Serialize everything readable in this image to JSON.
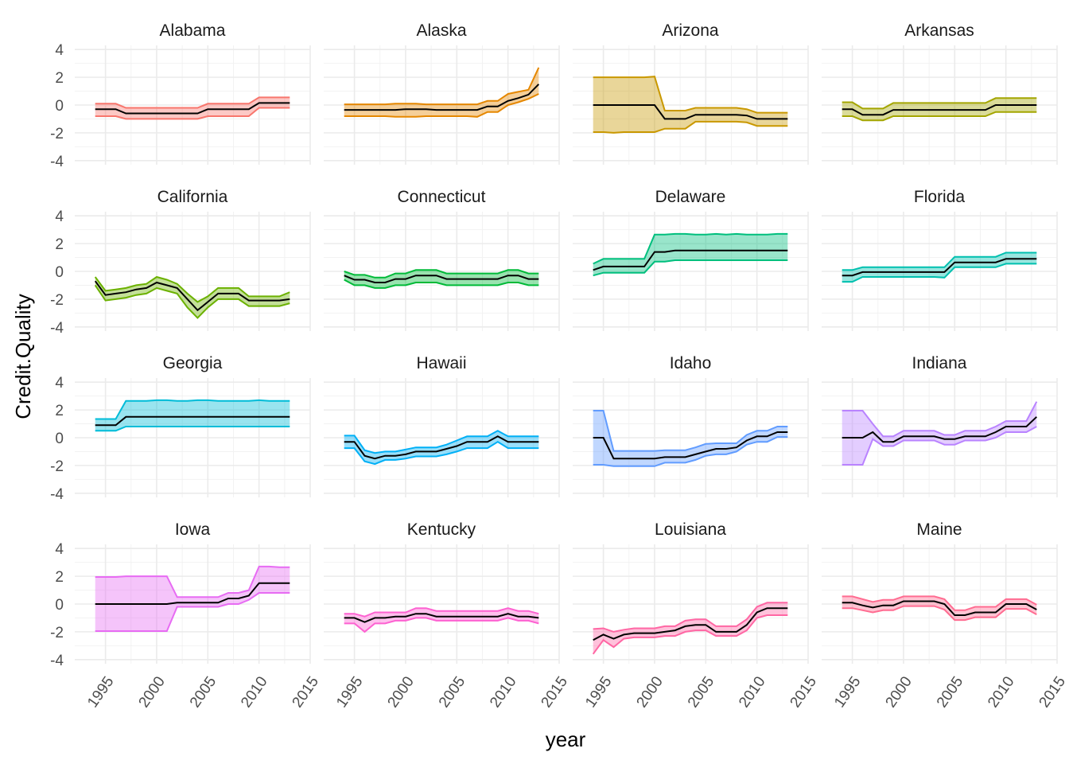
{
  "chart_data": {
    "type": "area",
    "xlabel": "year",
    "ylabel": "Credit.Quality",
    "xlim": [
      1992,
      2015
    ],
    "ylim": [
      -4.3,
      4.3
    ],
    "x_ticks": [
      1995,
      2000,
      2005,
      2010,
      2015
    ],
    "y_ticks": [
      -4,
      -2,
      0,
      2,
      4
    ],
    "facet_cols": 4,
    "colors": [
      "#F8766D",
      "#E58700",
      "#C99800",
      "#A3A500",
      "#6BB100",
      "#00BA38",
      "#00BF7D",
      "#00C0AF",
      "#00BCD8",
      "#00B0F6",
      "#619CFF",
      "#B983FF",
      "#E76BF3",
      "#FD61D1",
      "#FF67A4",
      "#FF6C91"
    ],
    "line_color": "#000000",
    "years": [
      1994,
      1995,
      1996,
      1997,
      1998,
      1999,
      2000,
      2001,
      2002,
      2003,
      2004,
      2005,
      2006,
      2007,
      2008,
      2009,
      2010,
      2011,
      2012,
      2013
    ],
    "panels": [
      {
        "state": "Alabama",
        "mean": [
          -0.3,
          -0.3,
          -0.3,
          -0.6,
          -0.6,
          -0.6,
          -0.6,
          -0.6,
          -0.6,
          -0.6,
          -0.6,
          -0.3,
          -0.3,
          -0.3,
          -0.3,
          -0.3,
          0.15,
          0.15,
          0.15,
          0.15
        ],
        "lower": [
          -0.8,
          -0.8,
          -0.8,
          -1.0,
          -1.0,
          -1.0,
          -1.0,
          -1.0,
          -1.0,
          -1.0,
          -1.0,
          -0.8,
          -0.8,
          -0.8,
          -0.8,
          -0.8,
          -0.2,
          -0.2,
          -0.2,
          -0.2
        ],
        "upper": [
          0.1,
          0.1,
          0.1,
          -0.2,
          -0.2,
          -0.2,
          -0.2,
          -0.2,
          -0.2,
          -0.2,
          -0.2,
          0.1,
          0.1,
          0.1,
          0.1,
          0.1,
          0.55,
          0.55,
          0.55,
          0.55
        ]
      },
      {
        "state": "Alaska",
        "mean": [
          -0.35,
          -0.35,
          -0.35,
          -0.35,
          -0.35,
          -0.35,
          -0.3,
          -0.3,
          -0.3,
          -0.35,
          -0.35,
          -0.35,
          -0.35,
          -0.35,
          -0.1,
          -0.1,
          0.3,
          0.5,
          0.75,
          1.5
        ],
        "lower": [
          -0.8,
          -0.8,
          -0.8,
          -0.8,
          -0.8,
          -0.85,
          -0.85,
          -0.85,
          -0.8,
          -0.8,
          -0.8,
          -0.8,
          -0.8,
          -0.85,
          -0.5,
          -0.5,
          0.0,
          0.2,
          0.45,
          0.8
        ],
        "upper": [
          0.05,
          0.05,
          0.05,
          0.05,
          0.05,
          0.1,
          0.1,
          0.1,
          0.05,
          0.05,
          0.05,
          0.05,
          0.05,
          0.05,
          0.3,
          0.3,
          0.8,
          0.95,
          1.1,
          2.7
        ]
      },
      {
        "state": "Arizona",
        "mean": [
          0.0,
          0.0,
          0.0,
          0.0,
          0.0,
          0.0,
          0.0,
          -1.0,
          -1.0,
          -1.0,
          -0.7,
          -0.7,
          -0.7,
          -0.7,
          -0.7,
          -0.75,
          -1.0,
          -1.0,
          -1.0,
          -1.0
        ],
        "lower": [
          -1.95,
          -1.95,
          -2.0,
          -1.95,
          -1.95,
          -1.95,
          -1.95,
          -1.7,
          -1.7,
          -1.7,
          -1.2,
          -1.2,
          -1.2,
          -1.2,
          -1.2,
          -1.25,
          -1.5,
          -1.5,
          -1.5,
          -1.5
        ],
        "upper": [
          2.0,
          2.0,
          2.0,
          2.0,
          2.0,
          2.0,
          2.05,
          -0.4,
          -0.4,
          -0.4,
          -0.2,
          -0.2,
          -0.2,
          -0.2,
          -0.2,
          -0.3,
          -0.55,
          -0.55,
          -0.55,
          -0.55
        ]
      },
      {
        "state": "Arkansas",
        "mean": [
          -0.3,
          -0.3,
          -0.7,
          -0.7,
          -0.7,
          -0.35,
          -0.35,
          -0.35,
          -0.35,
          -0.35,
          -0.35,
          -0.35,
          -0.35,
          -0.35,
          -0.35,
          0.0,
          0.0,
          0.0,
          0.0,
          0.0
        ],
        "lower": [
          -0.8,
          -0.8,
          -1.1,
          -1.1,
          -1.1,
          -0.8,
          -0.8,
          -0.8,
          -0.8,
          -0.8,
          -0.8,
          -0.8,
          -0.8,
          -0.8,
          -0.8,
          -0.5,
          -0.5,
          -0.5,
          -0.5,
          -0.5
        ],
        "upper": [
          0.2,
          0.2,
          -0.25,
          -0.25,
          -0.25,
          0.15,
          0.15,
          0.15,
          0.15,
          0.15,
          0.15,
          0.15,
          0.15,
          0.15,
          0.15,
          0.5,
          0.5,
          0.5,
          0.5,
          0.5
        ]
      },
      {
        "state": "California",
        "mean": [
          -0.7,
          -1.7,
          -1.6,
          -1.5,
          -1.3,
          -1.2,
          -0.8,
          -1.0,
          -1.2,
          -2.0,
          -2.8,
          -2.2,
          -1.6,
          -1.6,
          -1.6,
          -2.1,
          -2.1,
          -2.1,
          -2.1,
          -2.0
        ],
        "lower": [
          -1.0,
          -2.1,
          -2.0,
          -1.9,
          -1.7,
          -1.6,
          -1.2,
          -1.4,
          -1.6,
          -2.6,
          -3.35,
          -2.6,
          -2.0,
          -2.0,
          -2.0,
          -2.5,
          -2.5,
          -2.5,
          -2.5,
          -2.3
        ],
        "upper": [
          -0.4,
          -1.4,
          -1.3,
          -1.2,
          -1.0,
          -0.9,
          -0.4,
          -0.6,
          -0.9,
          -1.6,
          -2.2,
          -1.8,
          -1.2,
          -1.2,
          -1.2,
          -1.8,
          -1.8,
          -1.8,
          -1.8,
          -1.5
        ]
      },
      {
        "state": "Connecticut",
        "mean": [
          -0.3,
          -0.6,
          -0.6,
          -0.8,
          -0.8,
          -0.55,
          -0.55,
          -0.3,
          -0.3,
          -0.3,
          -0.55,
          -0.55,
          -0.55,
          -0.55,
          -0.55,
          -0.55,
          -0.3,
          -0.3,
          -0.55,
          -0.55
        ],
        "lower": [
          -0.6,
          -1.0,
          -1.0,
          -1.2,
          -1.2,
          -1.0,
          -1.0,
          -0.8,
          -0.8,
          -0.8,
          -1.0,
          -1.0,
          -1.0,
          -1.0,
          -1.0,
          -1.0,
          -0.8,
          -0.8,
          -1.0,
          -1.0
        ],
        "upper": [
          0.0,
          -0.25,
          -0.25,
          -0.45,
          -0.45,
          -0.15,
          -0.15,
          0.1,
          0.1,
          0.1,
          -0.15,
          -0.15,
          -0.15,
          -0.15,
          -0.15,
          -0.15,
          0.1,
          0.1,
          -0.15,
          -0.15
        ]
      },
      {
        "state": "Delaware",
        "mean": [
          0.1,
          0.35,
          0.35,
          0.35,
          0.35,
          0.35,
          1.4,
          1.4,
          1.5,
          1.5,
          1.5,
          1.5,
          1.5,
          1.5,
          1.5,
          1.5,
          1.5,
          1.5,
          1.5,
          1.5
        ],
        "lower": [
          -0.3,
          -0.1,
          -0.1,
          -0.1,
          -0.1,
          -0.1,
          0.7,
          0.7,
          0.8,
          0.8,
          0.8,
          0.8,
          0.8,
          0.8,
          0.8,
          0.8,
          0.8,
          0.8,
          0.8,
          0.8
        ],
        "upper": [
          0.55,
          0.9,
          0.9,
          0.9,
          0.9,
          0.9,
          2.65,
          2.65,
          2.7,
          2.7,
          2.65,
          2.65,
          2.7,
          2.65,
          2.7,
          2.65,
          2.65,
          2.65,
          2.7,
          2.7
        ]
      },
      {
        "state": "Florida",
        "mean": [
          -0.3,
          -0.3,
          -0.05,
          -0.05,
          -0.05,
          -0.05,
          -0.05,
          -0.05,
          -0.05,
          -0.05,
          -0.05,
          0.65,
          0.65,
          0.65,
          0.65,
          0.65,
          0.9,
          0.9,
          0.9,
          0.9
        ],
        "lower": [
          -0.75,
          -0.75,
          -0.4,
          -0.4,
          -0.4,
          -0.4,
          -0.4,
          -0.4,
          -0.4,
          -0.4,
          -0.45,
          0.3,
          0.3,
          0.3,
          0.3,
          0.3,
          0.55,
          0.55,
          0.55,
          0.55
        ],
        "upper": [
          0.1,
          0.1,
          0.3,
          0.3,
          0.3,
          0.3,
          0.3,
          0.3,
          0.3,
          0.3,
          0.3,
          1.05,
          1.05,
          1.05,
          1.05,
          1.05,
          1.35,
          1.35,
          1.35,
          1.35
        ]
      },
      {
        "state": "Georgia",
        "mean": [
          0.9,
          0.9,
          0.9,
          1.5,
          1.5,
          1.5,
          1.5,
          1.5,
          1.5,
          1.5,
          1.5,
          1.5,
          1.5,
          1.5,
          1.5,
          1.5,
          1.5,
          1.5,
          1.5,
          1.5
        ],
        "lower": [
          0.5,
          0.5,
          0.5,
          0.8,
          0.8,
          0.8,
          0.8,
          0.8,
          0.8,
          0.8,
          0.8,
          0.8,
          0.8,
          0.8,
          0.8,
          0.8,
          0.8,
          0.8,
          0.8,
          0.8
        ],
        "upper": [
          1.35,
          1.35,
          1.35,
          2.65,
          2.65,
          2.65,
          2.7,
          2.7,
          2.65,
          2.65,
          2.7,
          2.7,
          2.65,
          2.65,
          2.65,
          2.65,
          2.7,
          2.65,
          2.65,
          2.65
        ]
      },
      {
        "state": "Hawaii",
        "mean": [
          -0.3,
          -0.3,
          -1.3,
          -1.5,
          -1.3,
          -1.3,
          -1.2,
          -1.0,
          -1.0,
          -1.0,
          -0.8,
          -0.6,
          -0.3,
          -0.3,
          -0.3,
          0.1,
          -0.3,
          -0.3,
          -0.3,
          -0.3
        ],
        "lower": [
          -0.75,
          -0.75,
          -1.7,
          -1.9,
          -1.6,
          -1.6,
          -1.5,
          -1.35,
          -1.35,
          -1.35,
          -1.2,
          -1.0,
          -0.75,
          -0.75,
          -0.75,
          -0.3,
          -0.75,
          -0.75,
          -0.75,
          -0.75
        ],
        "upper": [
          0.15,
          0.15,
          -0.9,
          -1.1,
          -1.0,
          -1.0,
          -0.85,
          -0.7,
          -0.7,
          -0.7,
          -0.5,
          -0.2,
          0.1,
          0.1,
          0.1,
          0.5,
          0.1,
          0.1,
          0.1,
          0.1
        ]
      },
      {
        "state": "Idaho",
        "mean": [
          0.0,
          0.0,
          -1.5,
          -1.5,
          -1.5,
          -1.5,
          -1.5,
          -1.4,
          -1.4,
          -1.4,
          -1.2,
          -1.0,
          -0.8,
          -0.8,
          -0.7,
          -0.2,
          0.1,
          0.1,
          0.4,
          0.4
        ],
        "lower": [
          -1.95,
          -1.95,
          -2.05,
          -2.05,
          -2.05,
          -2.05,
          -2.05,
          -1.8,
          -1.8,
          -1.8,
          -1.6,
          -1.3,
          -1.2,
          -1.2,
          -1.0,
          -0.5,
          -0.3,
          -0.3,
          0.05,
          0.05
        ],
        "upper": [
          1.95,
          1.95,
          -0.95,
          -0.95,
          -0.95,
          -0.95,
          -0.95,
          -0.9,
          -0.9,
          -0.9,
          -0.7,
          -0.45,
          -0.4,
          -0.4,
          -0.4,
          0.2,
          0.5,
          0.5,
          0.8,
          0.8
        ]
      },
      {
        "state": "Indiana",
        "mean": [
          0.0,
          0.0,
          0.0,
          0.4,
          -0.3,
          -0.3,
          0.1,
          0.1,
          0.1,
          0.1,
          -0.1,
          -0.1,
          0.1,
          0.1,
          0.1,
          0.4,
          0.8,
          0.8,
          0.8,
          1.5
        ],
        "lower": [
          -1.95,
          -1.95,
          -1.95,
          -0.1,
          -0.6,
          -0.6,
          -0.2,
          -0.2,
          -0.2,
          -0.2,
          -0.5,
          -0.5,
          -0.2,
          -0.2,
          -0.2,
          0.0,
          0.4,
          0.4,
          0.4,
          0.8
        ],
        "upper": [
          1.95,
          1.95,
          1.95,
          1.0,
          0.1,
          0.1,
          0.5,
          0.5,
          0.5,
          0.5,
          0.2,
          0.2,
          0.5,
          0.5,
          0.5,
          0.8,
          1.2,
          1.2,
          1.2,
          2.6
        ]
      },
      {
        "state": "Iowa",
        "mean": [
          0.0,
          0.0,
          0.0,
          0.0,
          0.0,
          0.0,
          0.0,
          0.0,
          0.1,
          0.1,
          0.1,
          0.1,
          0.1,
          0.4,
          0.4,
          0.6,
          1.5,
          1.5,
          1.5,
          1.5
        ],
        "lower": [
          -1.95,
          -1.95,
          -1.95,
          -1.95,
          -1.95,
          -1.95,
          -1.95,
          -1.95,
          -0.2,
          -0.2,
          -0.2,
          -0.2,
          -0.2,
          0.0,
          0.0,
          0.3,
          0.8,
          0.8,
          0.8,
          0.8
        ],
        "upper": [
          1.95,
          1.95,
          1.95,
          2.0,
          2.0,
          2.0,
          2.0,
          2.0,
          0.5,
          0.5,
          0.5,
          0.5,
          0.5,
          0.8,
          0.8,
          1.0,
          2.7,
          2.7,
          2.65,
          2.65
        ]
      },
      {
        "state": "Kentucky",
        "mean": [
          -1.0,
          -1.0,
          -1.3,
          -1.0,
          -1.0,
          -0.9,
          -0.9,
          -0.7,
          -0.7,
          -0.9,
          -0.9,
          -0.9,
          -0.9,
          -0.9,
          -0.9,
          -0.9,
          -0.7,
          -0.9,
          -0.9,
          -1.0
        ],
        "lower": [
          -1.4,
          -1.4,
          -2.0,
          -1.4,
          -1.4,
          -1.2,
          -1.2,
          -1.0,
          -1.0,
          -1.2,
          -1.2,
          -1.2,
          -1.2,
          -1.2,
          -1.2,
          -1.2,
          -1.0,
          -1.2,
          -1.2,
          -1.4
        ],
        "upper": [
          -0.7,
          -0.7,
          -0.9,
          -0.6,
          -0.6,
          -0.6,
          -0.6,
          -0.3,
          -0.3,
          -0.5,
          -0.5,
          -0.5,
          -0.5,
          -0.5,
          -0.5,
          -0.5,
          -0.3,
          -0.5,
          -0.5,
          -0.7
        ]
      },
      {
        "state": "Louisiana",
        "mean": [
          -2.6,
          -2.2,
          -2.5,
          -2.2,
          -2.1,
          -2.1,
          -2.1,
          -2.0,
          -1.9,
          -1.6,
          -1.5,
          -1.5,
          -2.0,
          -2.0,
          -2.0,
          -1.5,
          -0.6,
          -0.3,
          -0.3,
          -0.3
        ],
        "lower": [
          -3.6,
          -2.6,
          -3.1,
          -2.5,
          -2.4,
          -2.4,
          -2.4,
          -2.3,
          -2.3,
          -2.0,
          -1.9,
          -1.9,
          -2.3,
          -2.3,
          -2.3,
          -1.9,
          -1.0,
          -0.8,
          -0.8,
          -0.8
        ],
        "upper": [
          -1.8,
          -1.75,
          -2.0,
          -1.85,
          -1.75,
          -1.75,
          -1.75,
          -1.6,
          -1.6,
          -1.2,
          -1.1,
          -1.1,
          -1.6,
          -1.6,
          -1.6,
          -1.1,
          -0.2,
          0.1,
          0.1,
          0.1
        ]
      },
      {
        "state": "Maine",
        "mean": [
          0.1,
          0.1,
          -0.1,
          -0.25,
          -0.1,
          -0.1,
          0.2,
          0.2,
          0.2,
          0.2,
          0.0,
          -0.8,
          -0.8,
          -0.6,
          -0.6,
          -0.6,
          0.0,
          0.0,
          0.0,
          -0.4
        ],
        "lower": [
          -0.3,
          -0.3,
          -0.45,
          -0.6,
          -0.45,
          -0.45,
          -0.15,
          -0.15,
          -0.15,
          -0.15,
          -0.4,
          -1.15,
          -1.15,
          -0.95,
          -0.95,
          -0.95,
          -0.35,
          -0.35,
          -0.35,
          -0.75
        ],
        "upper": [
          0.55,
          0.55,
          0.35,
          0.15,
          0.3,
          0.3,
          0.55,
          0.55,
          0.55,
          0.55,
          0.35,
          -0.45,
          -0.45,
          -0.2,
          -0.2,
          -0.2,
          0.35,
          0.35,
          0.35,
          -0.05
        ]
      }
    ]
  }
}
